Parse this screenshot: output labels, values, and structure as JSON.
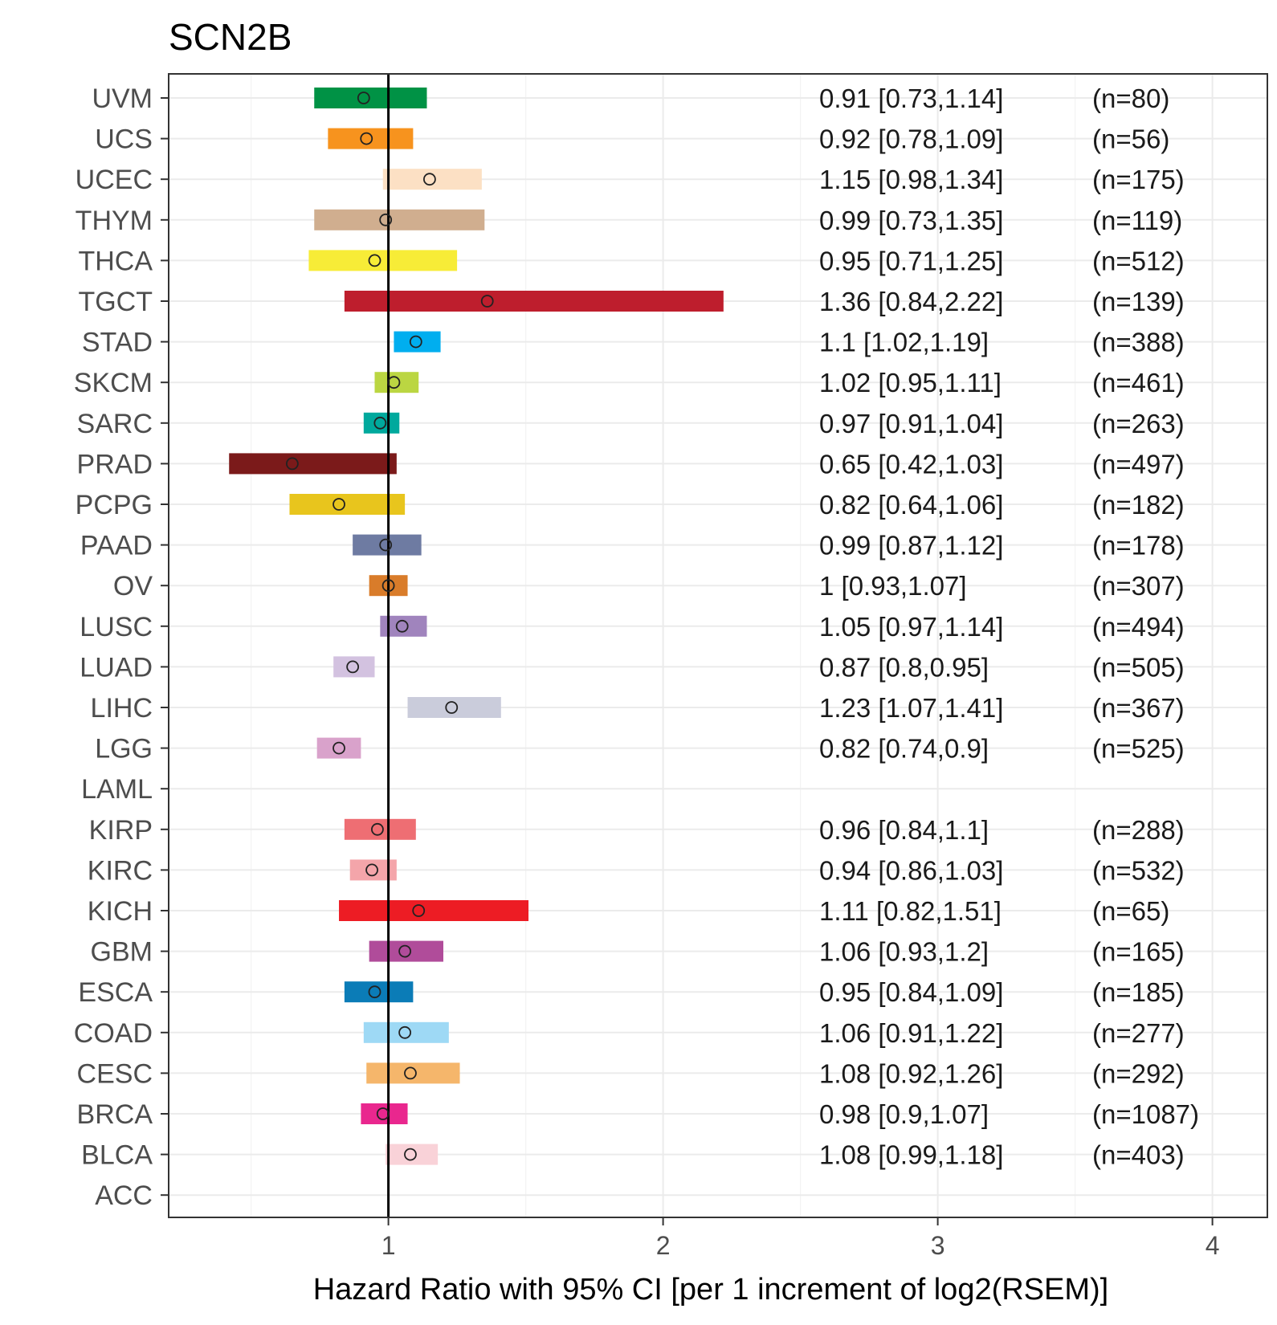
{
  "chart_data": {
    "type": "forest",
    "title": "SCN2B",
    "xlabel": "Hazard Ratio with 95% CI [per 1 increment of log2(RSEM)]",
    "xlim": [
      0.2,
      4.2
    ],
    "xticks": [
      1,
      2,
      3,
      4
    ],
    "reference_line": 1,
    "rows": [
      {
        "label": "UVM",
        "hr": 0.91,
        "lo": 0.73,
        "hi": 1.14,
        "text": "0.91 [0.73,1.14]",
        "n": "(n=80)",
        "color": "#009245"
      },
      {
        "label": "UCS",
        "hr": 0.92,
        "lo": 0.78,
        "hi": 1.09,
        "text": "0.92 [0.78,1.09]",
        "n": "(n=56)",
        "color": "#F7931E"
      },
      {
        "label": "UCEC",
        "hr": 1.15,
        "lo": 0.98,
        "hi": 1.34,
        "text": "1.15 [0.98,1.34]",
        "n": "(n=175)",
        "color": "#FCE0C4"
      },
      {
        "label": "THYM",
        "hr": 0.99,
        "lo": 0.73,
        "hi": 1.35,
        "text": "0.99 [0.73,1.35]",
        "n": "(n=119)",
        "color": "#D0AE8F"
      },
      {
        "label": "THCA",
        "hr": 0.95,
        "lo": 0.71,
        "hi": 1.25,
        "text": "0.95 [0.71,1.25]",
        "n": "(n=512)",
        "color": "#F7EC37"
      },
      {
        "label": "TGCT",
        "hr": 1.36,
        "lo": 0.84,
        "hi": 2.22,
        "text": "1.36 [0.84,2.22]",
        "n": "(n=139)",
        "color": "#BE1E2D"
      },
      {
        "label": "STAD",
        "hr": 1.1,
        "lo": 1.02,
        "hi": 1.19,
        "text": "1.1 [1.02,1.19]",
        "n": "(n=388)",
        "color": "#00AEEF"
      },
      {
        "label": "SKCM",
        "hr": 1.02,
        "lo": 0.95,
        "hi": 1.11,
        "text": "1.02 [0.95,1.11]",
        "n": "(n=461)",
        "color": "#BBD642"
      },
      {
        "label": "SARC",
        "hr": 0.97,
        "lo": 0.91,
        "hi": 1.04,
        "text": "0.97 [0.91,1.04]",
        "n": "(n=263)",
        "color": "#00A99D"
      },
      {
        "label": "PRAD",
        "hr": 0.65,
        "lo": 0.42,
        "hi": 1.03,
        "text": "0.65 [0.42,1.03]",
        "n": "(n=497)",
        "color": "#7B1A1A"
      },
      {
        "label": "PCPG",
        "hr": 0.82,
        "lo": 0.64,
        "hi": 1.06,
        "text": "0.82 [0.64,1.06]",
        "n": "(n=182)",
        "color": "#E8C51D"
      },
      {
        "label": "PAAD",
        "hr": 0.99,
        "lo": 0.87,
        "hi": 1.12,
        "text": "0.99 [0.87,1.12]",
        "n": "(n=178)",
        "color": "#6E7BA2"
      },
      {
        "label": "OV",
        "hr": 1,
        "lo": 0.93,
        "hi": 1.07,
        "text": "1 [0.93,1.07]",
        "n": "(n=307)",
        "color": "#D97C2A"
      },
      {
        "label": "LUSC",
        "hr": 1.05,
        "lo": 0.97,
        "hi": 1.14,
        "text": "1.05 [0.97,1.14]",
        "n": "(n=494)",
        "color": "#A084BD"
      },
      {
        "label": "LUAD",
        "hr": 0.87,
        "lo": 0.8,
        "hi": 0.95,
        "text": "0.87 [0.8,0.95]",
        "n": "(n=505)",
        "color": "#D3C2E0"
      },
      {
        "label": "LIHC",
        "hr": 1.23,
        "lo": 1.07,
        "hi": 1.41,
        "text": "1.23 [1.07,1.41]",
        "n": "(n=367)",
        "color": "#CACCDB"
      },
      {
        "label": "LGG",
        "hr": 0.82,
        "lo": 0.74,
        "hi": 0.9,
        "text": "0.82 [0.74,0.9]",
        "n": "(n=525)",
        "color": "#D9A2CB"
      },
      {
        "label": "LAML",
        "hr": null,
        "lo": null,
        "hi": null,
        "text": "",
        "n": "",
        "color": "#cccccc"
      },
      {
        "label": "KIRP",
        "hr": 0.96,
        "lo": 0.84,
        "hi": 1.1,
        "text": "0.96 [0.84,1.1]",
        "n": "(n=288)",
        "color": "#EE6E73"
      },
      {
        "label": "KIRC",
        "hr": 0.94,
        "lo": 0.86,
        "hi": 1.03,
        "text": "0.94 [0.86,1.03]",
        "n": "(n=532)",
        "color": "#F4A5AA"
      },
      {
        "label": "KICH",
        "hr": 1.11,
        "lo": 0.82,
        "hi": 1.51,
        "text": "1.11 [0.82,1.51]",
        "n": "(n=65)",
        "color": "#ED1C24"
      },
      {
        "label": "GBM",
        "hr": 1.06,
        "lo": 0.93,
        "hi": 1.2,
        "text": "1.06 [0.93,1.2]",
        "n": "(n=165)",
        "color": "#B04C9A"
      },
      {
        "label": "ESCA",
        "hr": 0.95,
        "lo": 0.84,
        "hi": 1.09,
        "text": "0.95 [0.84,1.09]",
        "n": "(n=185)",
        "color": "#0B7CB7"
      },
      {
        "label": "COAD",
        "hr": 1.06,
        "lo": 0.91,
        "hi": 1.22,
        "text": "1.06 [0.91,1.22]",
        "n": "(n=277)",
        "color": "#9ED9F5"
      },
      {
        "label": "CESC",
        "hr": 1.08,
        "lo": 0.92,
        "hi": 1.26,
        "text": "1.08 [0.92,1.26]",
        "n": "(n=292)",
        "color": "#F5B66B"
      },
      {
        "label": "BRCA",
        "hr": 0.98,
        "lo": 0.9,
        "hi": 1.07,
        "text": "0.98 [0.9,1.07]",
        "n": "(n=1087)",
        "color": "#E9278E"
      },
      {
        "label": "BLCA",
        "hr": 1.08,
        "lo": 0.99,
        "hi": 1.18,
        "text": "1.08 [0.99,1.18]",
        "n": "(n=403)",
        "color": "#F9D2D8"
      },
      {
        "label": "ACC",
        "hr": null,
        "lo": null,
        "hi": null,
        "text": "",
        "n": "",
        "color": "#cccccc"
      }
    ]
  }
}
